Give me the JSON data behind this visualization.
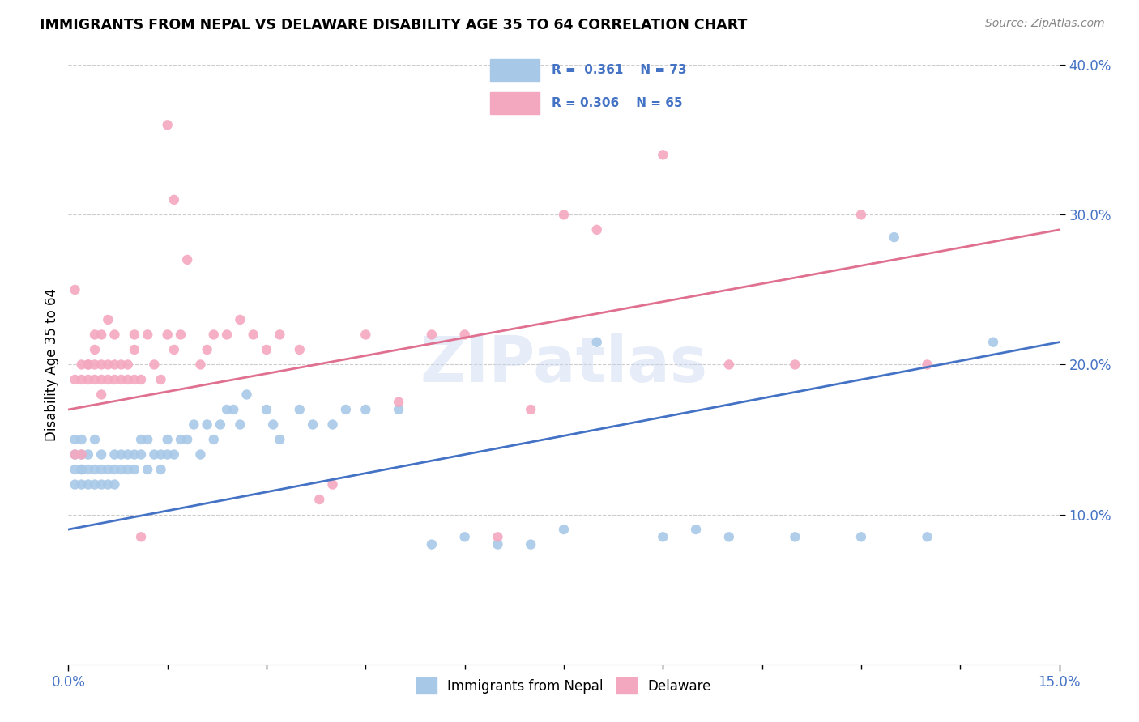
{
  "title": "IMMIGRANTS FROM NEPAL VS DELAWARE DISABILITY AGE 35 TO 64 CORRELATION CHART",
  "source": "Source: ZipAtlas.com",
  "ylabel": "Disability Age 35 to 64",
  "xlim": [
    0.0,
    0.15
  ],
  "ylim": [
    0.0,
    0.4
  ],
  "y_ticks": [
    0.1,
    0.2,
    0.3,
    0.4
  ],
  "y_tick_labels": [
    "10.0%",
    "20.0%",
    "30.0%",
    "40.0%"
  ],
  "nepal_color": "#a8c8e8",
  "delaware_color": "#f4a8c0",
  "nepal_line_color": "#4472c4",
  "delaware_line_color": "#e07090",
  "legend_r_nepal": "R =  0.361",
  "legend_n_nepal": "N = 73",
  "legend_r_delaware": "R = 0.306",
  "legend_n_delaware": "N = 65",
  "watermark": "ZIPatlas",
  "nepal_x": [
    0.001,
    0.001,
    0.001,
    0.001,
    0.002,
    0.002,
    0.002,
    0.002,
    0.002,
    0.003,
    0.003,
    0.003,
    0.004,
    0.004,
    0.004,
    0.005,
    0.005,
    0.005,
    0.006,
    0.006,
    0.007,
    0.007,
    0.007,
    0.008,
    0.008,
    0.009,
    0.009,
    0.01,
    0.01,
    0.011,
    0.011,
    0.012,
    0.012,
    0.013,
    0.014,
    0.014,
    0.015,
    0.015,
    0.016,
    0.017,
    0.018,
    0.019,
    0.02,
    0.021,
    0.022,
    0.023,
    0.024,
    0.025,
    0.026,
    0.027,
    0.03,
    0.031,
    0.032,
    0.035,
    0.037,
    0.04,
    0.042,
    0.045,
    0.05,
    0.055,
    0.06,
    0.065,
    0.07,
    0.075,
    0.08,
    0.09,
    0.095,
    0.1,
    0.11,
    0.12,
    0.125,
    0.13,
    0.14
  ],
  "nepal_y": [
    0.13,
    0.14,
    0.12,
    0.15,
    0.13,
    0.12,
    0.14,
    0.15,
    0.13,
    0.12,
    0.13,
    0.14,
    0.12,
    0.13,
    0.15,
    0.12,
    0.13,
    0.14,
    0.12,
    0.13,
    0.13,
    0.14,
    0.12,
    0.13,
    0.14,
    0.13,
    0.14,
    0.13,
    0.14,
    0.14,
    0.15,
    0.13,
    0.15,
    0.14,
    0.13,
    0.14,
    0.14,
    0.15,
    0.14,
    0.15,
    0.15,
    0.16,
    0.14,
    0.16,
    0.15,
    0.16,
    0.17,
    0.17,
    0.16,
    0.18,
    0.17,
    0.16,
    0.15,
    0.17,
    0.16,
    0.16,
    0.17,
    0.17,
    0.17,
    0.08,
    0.085,
    0.08,
    0.08,
    0.09,
    0.215,
    0.085,
    0.09,
    0.085,
    0.085,
    0.085,
    0.285,
    0.085,
    0.215
  ],
  "delaware_x": [
    0.001,
    0.001,
    0.001,
    0.002,
    0.002,
    0.002,
    0.003,
    0.003,
    0.003,
    0.004,
    0.004,
    0.004,
    0.005,
    0.005,
    0.005,
    0.006,
    0.006,
    0.007,
    0.007,
    0.008,
    0.008,
    0.009,
    0.009,
    0.01,
    0.01,
    0.011,
    0.012,
    0.013,
    0.014,
    0.015,
    0.016,
    0.017,
    0.018,
    0.02,
    0.021,
    0.022,
    0.024,
    0.026,
    0.028,
    0.03,
    0.032,
    0.035,
    0.038,
    0.04,
    0.045,
    0.05,
    0.055,
    0.06,
    0.065,
    0.07,
    0.075,
    0.08,
    0.09,
    0.1,
    0.11,
    0.12,
    0.13,
    0.015,
    0.016,
    0.004,
    0.005,
    0.006,
    0.007,
    0.01,
    0.011
  ],
  "delaware_y": [
    0.14,
    0.19,
    0.25,
    0.14,
    0.19,
    0.2,
    0.19,
    0.2,
    0.2,
    0.19,
    0.2,
    0.21,
    0.18,
    0.2,
    0.19,
    0.19,
    0.2,
    0.2,
    0.19,
    0.19,
    0.2,
    0.19,
    0.2,
    0.19,
    0.21,
    0.19,
    0.22,
    0.2,
    0.19,
    0.22,
    0.21,
    0.22,
    0.27,
    0.2,
    0.21,
    0.22,
    0.22,
    0.23,
    0.22,
    0.21,
    0.22,
    0.21,
    0.11,
    0.12,
    0.22,
    0.175,
    0.22,
    0.22,
    0.085,
    0.17,
    0.3,
    0.29,
    0.34,
    0.2,
    0.2,
    0.3,
    0.2,
    0.36,
    0.31,
    0.22,
    0.22,
    0.23,
    0.22,
    0.22,
    0.085
  ]
}
